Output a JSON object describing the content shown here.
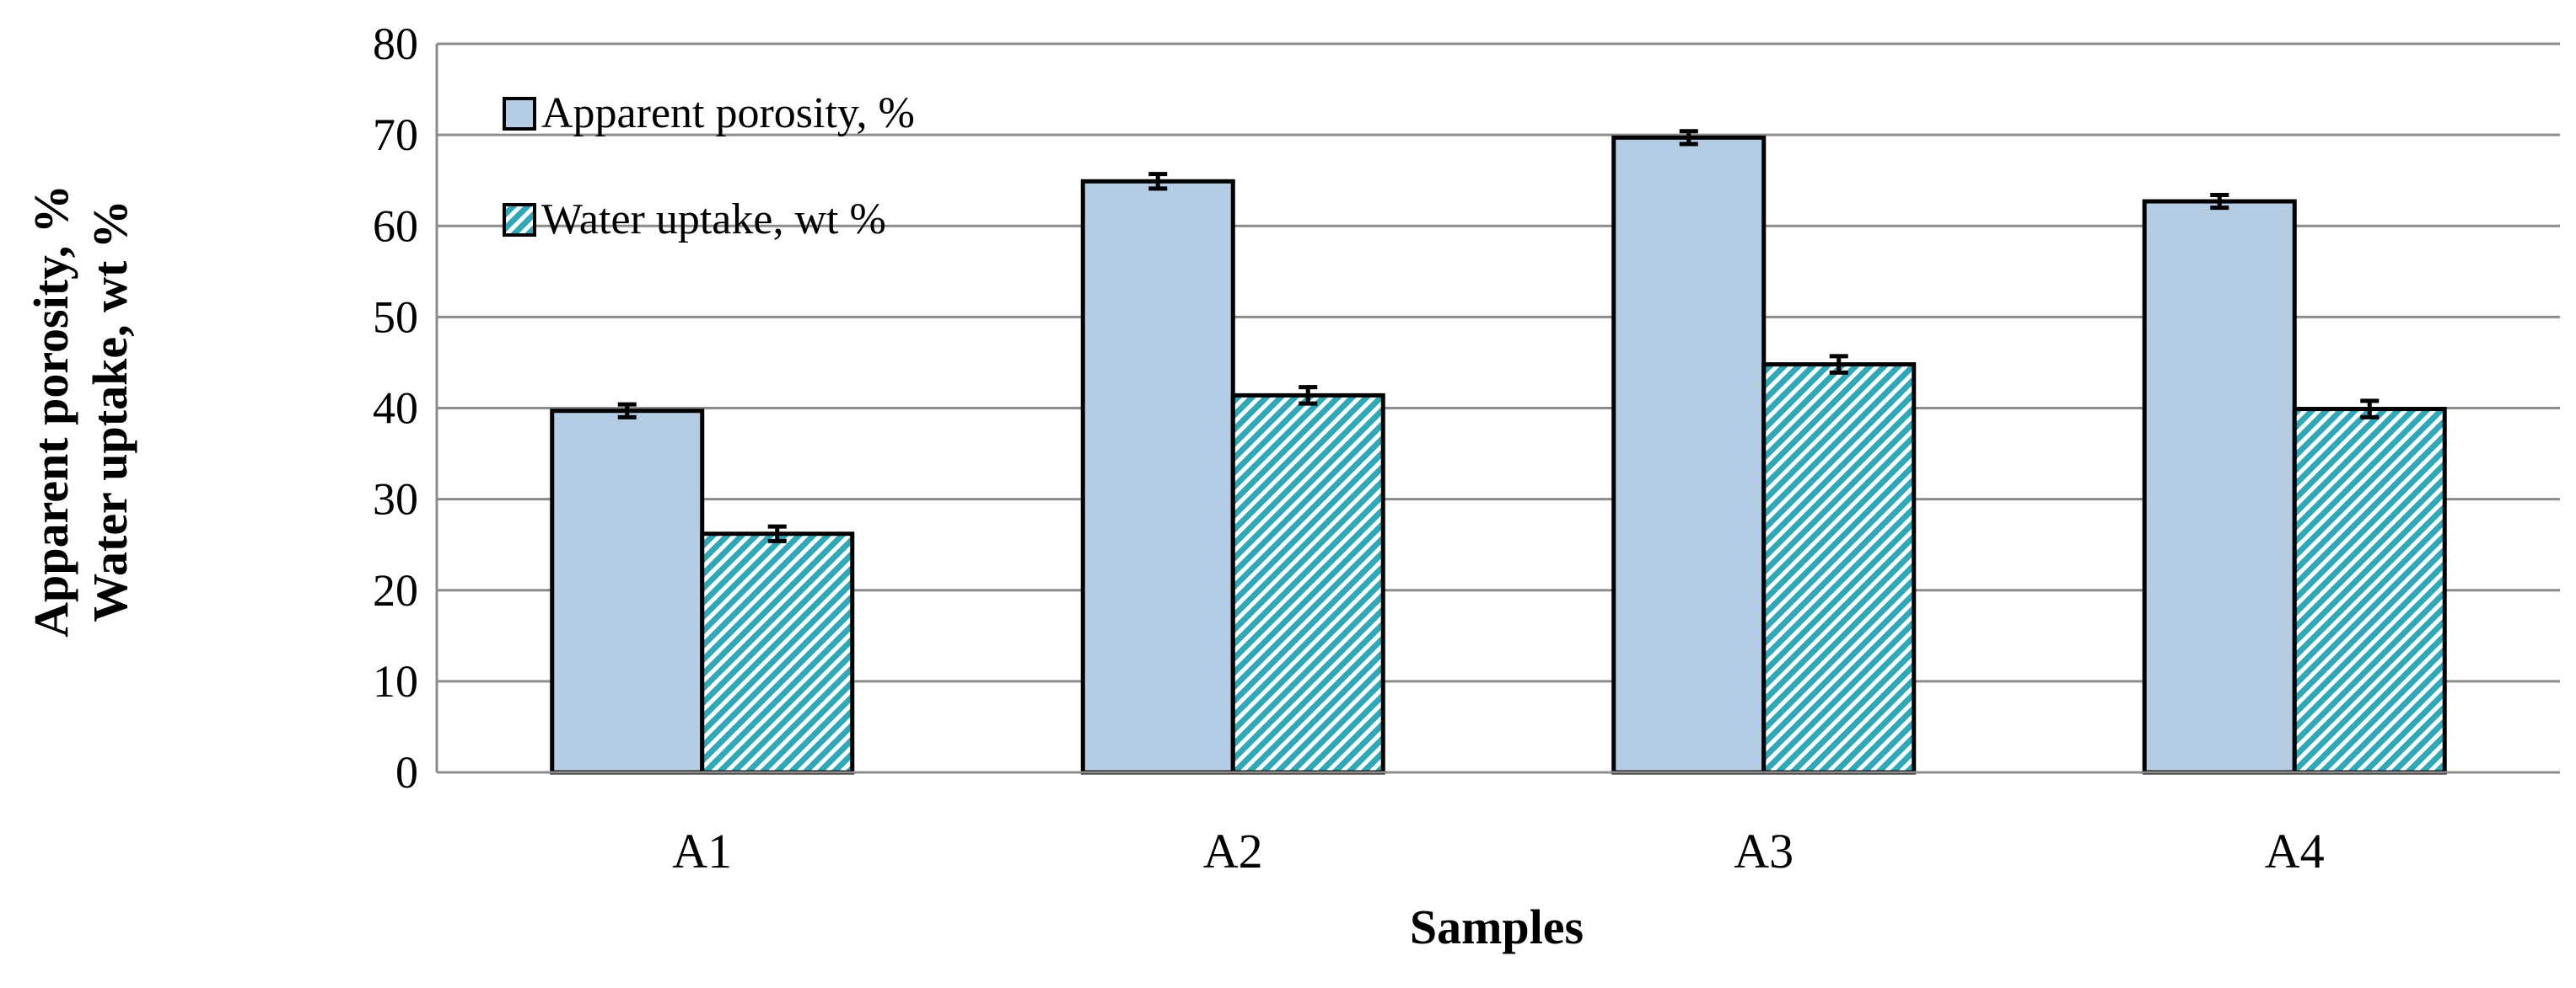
{
  "chart_data": {
    "type": "bar",
    "title": "",
    "xlabel": "Samples",
    "ylabel_lines": [
      "Apparent porosity, %",
      "Water uptake, wt %"
    ],
    "categories": [
      "A1",
      "A2",
      "A3",
      "A4"
    ],
    "ylim": [
      0,
      80
    ],
    "yticks": [
      0,
      10,
      20,
      30,
      40,
      50,
      60,
      70,
      80
    ],
    "grid": true,
    "legend_position": "top-left",
    "series": [
      {
        "name": "Apparent porosity, %",
        "values": [
          39.7,
          64.9,
          69.7,
          62.7
        ],
        "errors": [
          0.7,
          0.8,
          0.7,
          0.7
        ],
        "color": "#b4cce4",
        "pattern": "solid"
      },
      {
        "name": "Water uptake, wt %",
        "values": [
          26.2,
          41.4,
          44.8,
          39.9
        ],
        "errors": [
          0.8,
          0.9,
          0.9,
          0.9
        ],
        "color": "#2fa8b8",
        "pattern": "diagonal-hatch"
      }
    ]
  }
}
